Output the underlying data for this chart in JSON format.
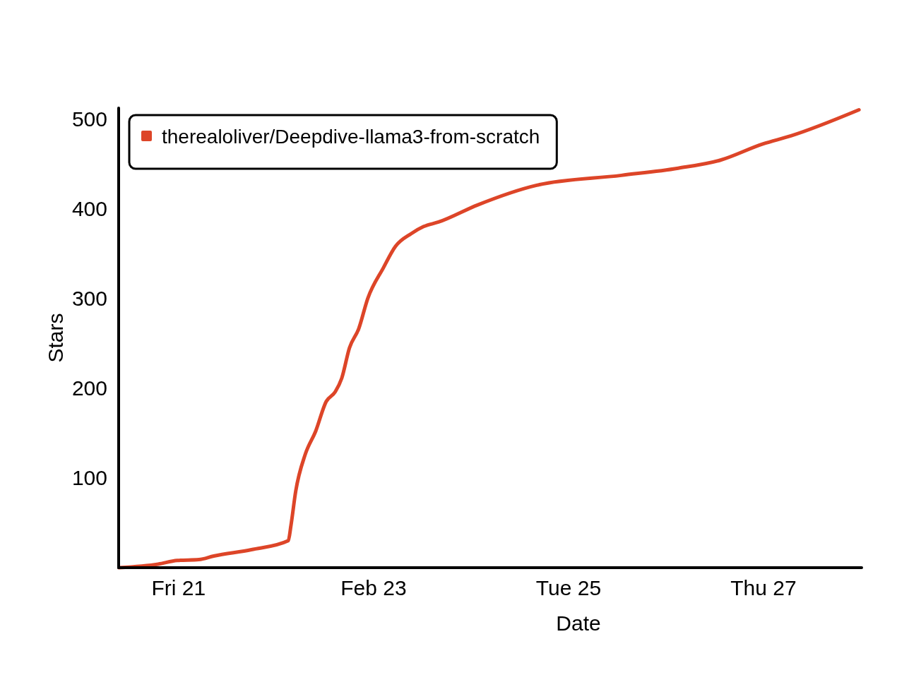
{
  "chart_data": {
    "type": "line",
    "xlabel": "Date",
    "ylabel": "Stars",
    "x": [
      "--02-20T09:20",
      "--02-20T19:00",
      "--02-20T23:40",
      "--02-21T05:00",
      "--02-21T08:40",
      "--02-21T17:55",
      "--02-22T03:00",
      "--02-22T03:40",
      "--02-22T04:50",
      "--02-22T07:10",
      "--02-22T09:45",
      "--02-22T12:20",
      "--02-22T14:35",
      "--02-22T16:10",
      "--02-22T18:05",
      "--02-22T20:20",
      "--02-22T22:35",
      "--02-23T02:25",
      "--02-23T05:25",
      "--02-23T09:15",
      "--02-23T12:20",
      "--02-23T16:00",
      "--02-24T01:35",
      "--02-24T16:10",
      "--02-25T13:00",
      "--02-26T03:00",
      "--02-26T13:25",
      "--02-26T23:50",
      "--02-27T06:45",
      "--02-27T23:30"
    ],
    "series": [
      {
        "name": "therealoliver/Deepdive-llama3-from-scratch",
        "color": "#dd4528",
        "values": [
          0,
          4,
          8,
          9,
          13,
          20,
          30,
          47,
          85,
          126,
          152,
          185,
          196,
          211,
          245,
          266,
          300,
          334,
          358,
          372,
          380,
          385,
          404,
          426,
          437,
          445,
          454,
          472,
          481,
          510
        ]
      }
    ],
    "xlim": [
      "--02-20T09:15",
      "--02-28T00:10"
    ],
    "xticks": [
      {
        "value": "--02-21",
        "label": "Fri 21"
      },
      {
        "value": "--02-23",
        "label": "Feb 23"
      },
      {
        "value": "--02-25",
        "label": "Tue 25"
      },
      {
        "value": "--02-27",
        "label": "Thu 27"
      }
    ],
    "ylim": [
      0,
      512
    ],
    "yticks": [
      100,
      200,
      300,
      400,
      500
    ],
    "legend": "top left"
  }
}
